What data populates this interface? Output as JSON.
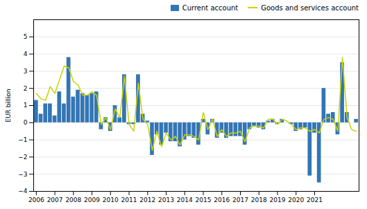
{
  "chart_data": {
    "type": "bar",
    "ylabel": "EUR billion",
    "categories": [
      "2006",
      null,
      null,
      null,
      "2007",
      null,
      null,
      null,
      "2008",
      null,
      null,
      null,
      "2009",
      null,
      null,
      null,
      "2010",
      null,
      null,
      null,
      "2011",
      null,
      null,
      null,
      "2012",
      null,
      null,
      null,
      "2013",
      null,
      null,
      null,
      "2014",
      null,
      null,
      null,
      "2015",
      null,
      null,
      null,
      "2016",
      null,
      null,
      null,
      "2017",
      null,
      null,
      null,
      "2018",
      null,
      null,
      null,
      "2019",
      null,
      null,
      null,
      "2020",
      null,
      null,
      null,
      "2021",
      null,
      null,
      null,
      null,
      null,
      null,
      null,
      null,
      null
    ],
    "series": [
      {
        "name": "Current account",
        "type": "bar",
        "color": "#3375b5",
        "values": [
          1.3,
          0.5,
          1.1,
          1.1,
          0.4,
          1.8,
          1.1,
          3.8,
          1.5,
          1.9,
          1.7,
          1.6,
          1.7,
          1.8,
          -0.4,
          0.3,
          -0.5,
          1.0,
          0.3,
          2.8,
          -0.1,
          -0.1,
          2.8,
          0.5,
          0.1,
          -1.9,
          -0.7,
          -1.3,
          -0.6,
          -1.1,
          -1.1,
          -1.4,
          -1.0,
          -0.8,
          -0.9,
          -1.3,
          0.2,
          -0.7,
          0.2,
          -0.9,
          -0.6,
          -0.9,
          -0.8,
          -0.8,
          -0.8,
          -1.3,
          -0.4,
          -0.2,
          -0.3,
          -0.4,
          0.1,
          0.2,
          -0.1,
          0.2,
          0.0,
          -0.1,
          -0.5,
          -0.4,
          -0.3,
          -3.1,
          -0.6,
          -3.5,
          2.0,
          0.5,
          0.6,
          -0.7,
          3.5,
          0.6,
          0.0,
          0.2
        ]
      },
      {
        "name": "Goods and services account",
        "type": "line",
        "color": "#c8d400",
        "values": [
          1.7,
          1.4,
          1.3,
          2.1,
          1.7,
          2.5,
          3.3,
          3.2,
          2.4,
          2.2,
          1.6,
          1.6,
          1.8,
          1.6,
          -0.1,
          0.3,
          -0.4,
          0.8,
          0.3,
          2.7,
          -0.1,
          -0.5,
          2.3,
          0.2,
          -0.1,
          -1.6,
          -0.5,
          -1.4,
          -0.6,
          -1.0,
          -0.8,
          -1.3,
          -0.7,
          -0.7,
          -0.8,
          -1.0,
          0.6,
          -0.4,
          0.2,
          -0.8,
          -0.4,
          -0.8,
          -0.6,
          -0.6,
          -0.5,
          -1.1,
          -0.3,
          -0.2,
          -0.2,
          -0.3,
          0.2,
          0.2,
          -0.1,
          0.2,
          0.1,
          -0.1,
          -0.4,
          -0.3,
          -0.3,
          -0.5,
          -0.4,
          -0.6,
          0.2,
          0.3,
          0.2,
          -0.5,
          3.8,
          0.3,
          -0.4,
          -0.5
        ]
      }
    ],
    "ylim": [
      -4,
      6
    ],
    "yticks": [
      -4,
      -3,
      -2,
      -1,
      0,
      1,
      2,
      3,
      4,
      5
    ],
    "grid": true,
    "legend": "upper right"
  }
}
